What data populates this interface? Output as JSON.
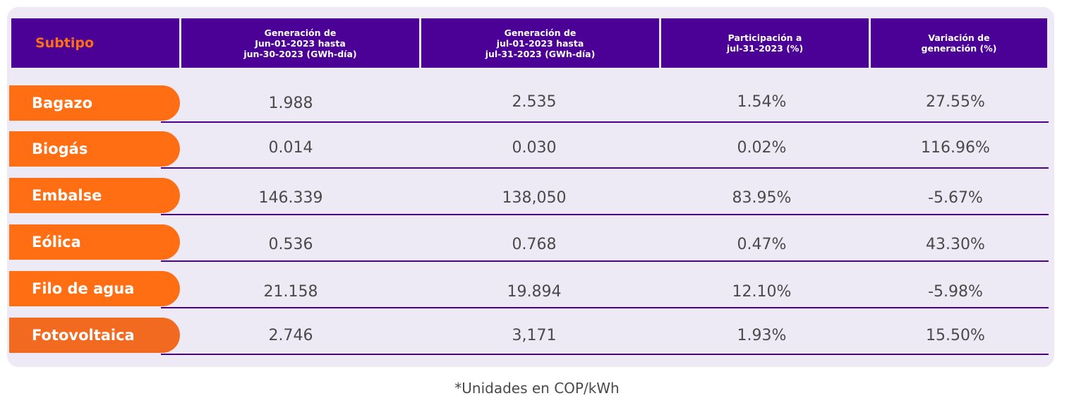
{
  "header": {
    "subtipo": "Subtipo",
    "col1": [
      "Generación de",
      "Jun-01-2023 hasta",
      "jun-30-2023 (GWh-día)"
    ],
    "col2": [
      "Generación de",
      "jul-01-2023 hasta",
      "jul-31-2023 (GWh-día)"
    ],
    "col3": [
      "Participación a",
      "jul-31-2023 (%)"
    ],
    "col4": [
      "Variación de",
      "generación (%)"
    ]
  },
  "rows": [
    {
      "label": "Bagazo",
      "jun": "1.988",
      "jul": "2.535",
      "part": "1.54%",
      "var": "27.55%"
    },
    {
      "label": "Biogás",
      "jun": "0.014",
      "jul": "0.030",
      "part": "0.02%",
      "var": "116.96%"
    },
    {
      "label": "Embalse",
      "jun": "146.339",
      "jul": "138,050",
      "part": "83.95%",
      "var": "-5.67%"
    },
    {
      "label": "Eólica",
      "jun": "0.536",
      "jul": "0.768",
      "part": "0.47%",
      "var": "43.30%"
    },
    {
      "label": "Filo de agua",
      "jun": "21.158",
      "jul": "19.894",
      "part": "12.10%",
      "var": "-5.98%"
    },
    {
      "label": "Fotovoltaica",
      "jun": "2.746",
      "jul": "3,171",
      "part": "1.93%",
      "var": "15.50%"
    }
  ],
  "footnote": "*Unidades en COP/kWh",
  "colors": {
    "header_bg": "#4b0096",
    "accent_orange": "#ff6e13",
    "panel_bg": "#eeeaf5"
  }
}
